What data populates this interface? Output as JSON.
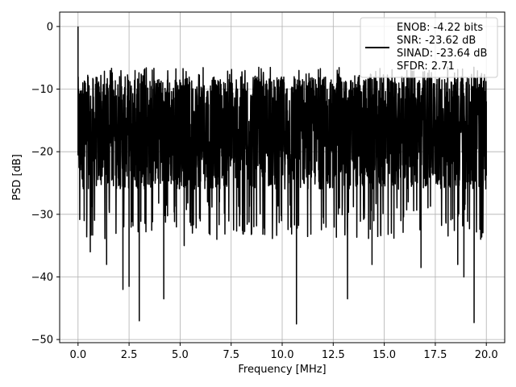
{
  "chart_data": {
    "type": "line",
    "xlabel": "Frequency [MHz]",
    "ylabel": "PSD [dB]",
    "xlim": [
      -0.9,
      20.9
    ],
    "ylim": [
      -50.5,
      2.3
    ],
    "xticks": [
      0.0,
      2.5,
      5.0,
      7.5,
      10.0,
      12.5,
      15.0,
      17.5,
      20.0
    ],
    "xtick_labels": [
      "0.0",
      "2.5",
      "5.0",
      "7.5",
      "10.0",
      "12.5",
      "15.0",
      "17.5",
      "20.0"
    ],
    "yticks": [
      0,
      -10,
      -20,
      -30,
      -40,
      -50
    ],
    "ytick_labels": [
      "0",
      "−10",
      "−20",
      "−30",
      "−40",
      "−50"
    ],
    "grid": true,
    "legend": {
      "placement": "top-right",
      "lines": [
        "ENOB: -4.22 bits",
        "SNR: -23.62 dB",
        "SINAD: -23.64 dB",
        "SFDR: 2.71"
      ]
    },
    "series": [
      {
        "color": "#000000",
        "x_range": [
          0.0,
          20.0
        ],
        "description_points": [
          [
            0.0,
            0.0
          ],
          [
            0.1,
            -17.0
          ],
          [
            0.3,
            -31.0
          ],
          [
            0.6,
            -36.0
          ],
          [
            1.4,
            -38.0
          ],
          [
            2.2,
            -42.0
          ],
          [
            2.5,
            -41.5
          ],
          [
            3.0,
            -47.0
          ],
          [
            4.2,
            -43.5
          ],
          [
            5.2,
            -35.0
          ],
          [
            6.8,
            -34.0
          ],
          [
            10.7,
            -47.5
          ],
          [
            13.2,
            -43.5
          ],
          [
            14.4,
            -38.0
          ],
          [
            16.8,
            -38.5
          ],
          [
            18.6,
            -38.0
          ],
          [
            18.9,
            -40.0
          ],
          [
            19.4,
            -47.3
          ],
          [
            20.0,
            -12.0
          ]
        ],
        "noise_band": {
          "upper_db": -6.5,
          "lower_db": -28.0,
          "typical_center_db": -17.0
        }
      }
    ]
  }
}
